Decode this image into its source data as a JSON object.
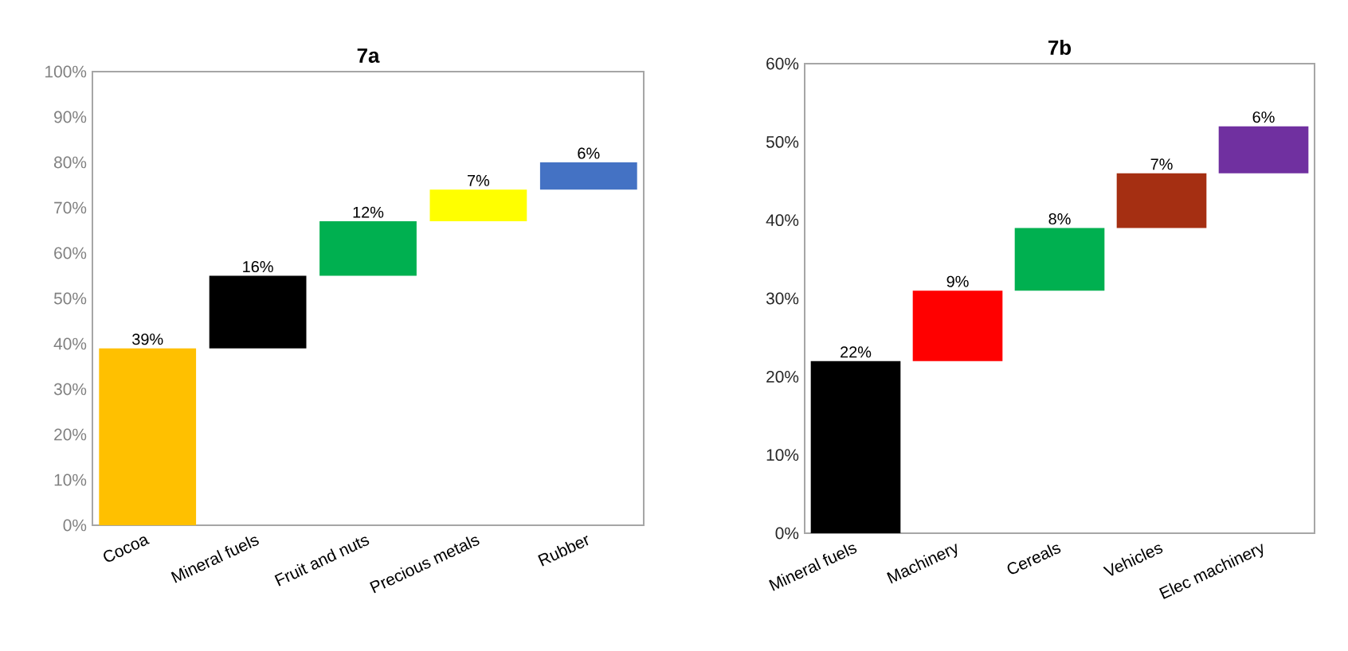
{
  "chart_data": [
    {
      "type": "bar",
      "title": "7a",
      "categories": [
        "Cocoa",
        "Mineral fuels",
        "Fruit and nuts",
        "Precious metals",
        "Rubber"
      ],
      "values": [
        39,
        16,
        12,
        7,
        6
      ],
      "base": [
        0,
        39,
        55,
        67,
        74
      ],
      "colors": [
        "#ffc000",
        "#000000",
        "#00b050",
        "#ffff00",
        "#4472c4"
      ],
      "value_labels": [
        "39%",
        "16%",
        "12%",
        "7%",
        "6%"
      ],
      "ylim": [
        0,
        100
      ],
      "yticks": [
        {
          "value": 0,
          "label": "0%"
        },
        {
          "value": 10,
          "label": "10%"
        },
        {
          "value": 20,
          "label": "20%"
        },
        {
          "value": 30,
          "label": "30%"
        },
        {
          "value": 40,
          "label": "40%"
        },
        {
          "value": 50,
          "label": "50%"
        },
        {
          "value": 60,
          "label": "60%"
        },
        {
          "value": 70,
          "label": "70%"
        },
        {
          "value": 80,
          "label": "80%"
        },
        {
          "value": 90,
          "label": "90%"
        },
        {
          "value": 100,
          "label": "100%"
        }
      ]
    },
    {
      "type": "bar",
      "title": "7b",
      "categories": [
        "Mineral fuels",
        "Machinery",
        "Cereals",
        "Vehicles",
        "Elec machinery"
      ],
      "values": [
        22,
        9,
        8,
        7,
        6
      ],
      "base": [
        0,
        22,
        31,
        39,
        46
      ],
      "colors": [
        "#000000",
        "#ff0000",
        "#00b050",
        "#a52f12",
        "#7030a0"
      ],
      "value_labels": [
        "22%",
        "9%",
        "8%",
        "7%",
        "6%"
      ],
      "ylim": [
        0,
        60
      ],
      "yticks": [
        {
          "value": 0,
          "label": "0%"
        },
        {
          "value": 10,
          "label": "10%"
        },
        {
          "value": 20,
          "label": "20%"
        },
        {
          "value": 30,
          "label": "30%"
        },
        {
          "value": 40,
          "label": "40%"
        },
        {
          "value": 50,
          "label": "50%"
        },
        {
          "value": 60,
          "label": "60%"
        }
      ]
    }
  ]
}
